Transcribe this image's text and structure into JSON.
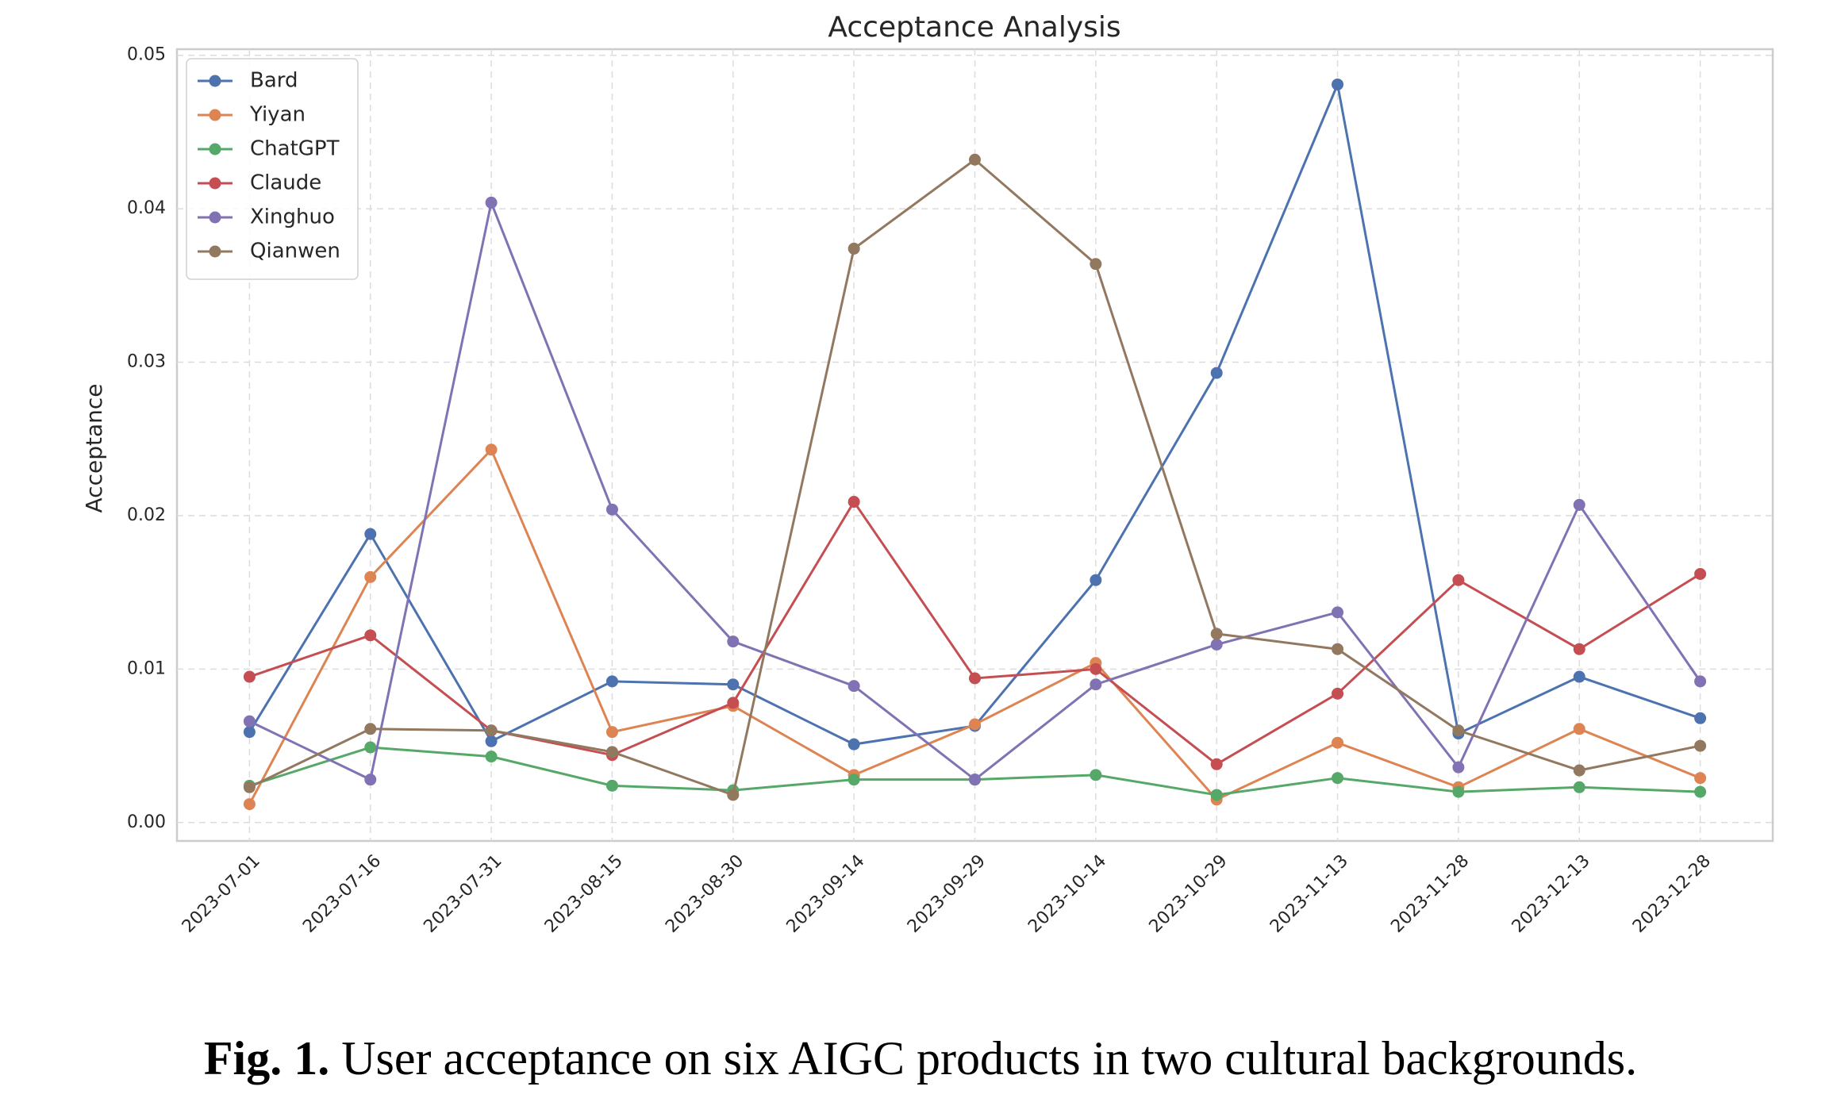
{
  "chart_data": {
    "type": "line",
    "title": "Acceptance Analysis",
    "ylabel": "Acceptance",
    "x": [
      "2023-07-01",
      "2023-07-16",
      "2023-07-31",
      "2023-08-15",
      "2023-08-30",
      "2023-09-14",
      "2023-09-29",
      "2023-10-14",
      "2023-10-29",
      "2023-11-13",
      "2023-11-28",
      "2023-12-13",
      "2023-12-28"
    ],
    "series": [
      {
        "name": "Bard",
        "color": "#4c72b0",
        "values": [
          0.0059,
          0.0188,
          0.0053,
          0.0092,
          0.009,
          0.0051,
          0.0063,
          0.0158,
          0.0293,
          0.0481,
          0.0058,
          0.0095,
          0.0068
        ]
      },
      {
        "name": "Yiyan",
        "color": "#dd8452",
        "values": [
          0.0012,
          0.016,
          0.0243,
          0.0059,
          0.0076,
          0.0031,
          0.0064,
          0.0104,
          0.0015,
          0.0052,
          0.0023,
          0.0061,
          0.0029
        ]
      },
      {
        "name": "ChatGPT",
        "color": "#55a868",
        "values": [
          0.0024,
          0.0049,
          0.0043,
          0.0024,
          0.0021,
          0.0028,
          0.0028,
          0.0031,
          0.0018,
          0.0029,
          0.002,
          0.0023,
          0.002
        ]
      },
      {
        "name": "Claude",
        "color": "#c44e52",
        "values": [
          0.0095,
          0.0122,
          0.006,
          0.0044,
          0.0078,
          0.0209,
          0.0094,
          0.01,
          0.0038,
          0.0084,
          0.0158,
          0.0113,
          0.0162
        ]
      },
      {
        "name": "Xinghuo",
        "color": "#8172b3",
        "values": [
          0.0066,
          0.0028,
          0.0404,
          0.0204,
          0.0118,
          0.0089,
          0.0028,
          0.009,
          0.0116,
          0.0137,
          0.0036,
          0.0207,
          0.0092
        ]
      },
      {
        "name": "Qianwen",
        "color": "#937860",
        "values": [
          0.0023,
          0.0061,
          0.006,
          0.0046,
          0.0018,
          0.0374,
          0.0432,
          0.0364,
          0.0123,
          0.0113,
          0.006,
          0.0034,
          0.005
        ]
      }
    ],
    "ylim": [
      -0.0012,
      0.0504
    ],
    "yticks": [
      {
        "value": 0,
        "label": "0.00"
      },
      0.01,
      0.02,
      0.03,
      0.04,
      0.05
    ],
    "grid": true,
    "legend": "upper left"
  },
  "caption": {
    "label": "Fig. 1.",
    "text": "User acceptance on six AIGC products in two cultural backgrounds."
  }
}
